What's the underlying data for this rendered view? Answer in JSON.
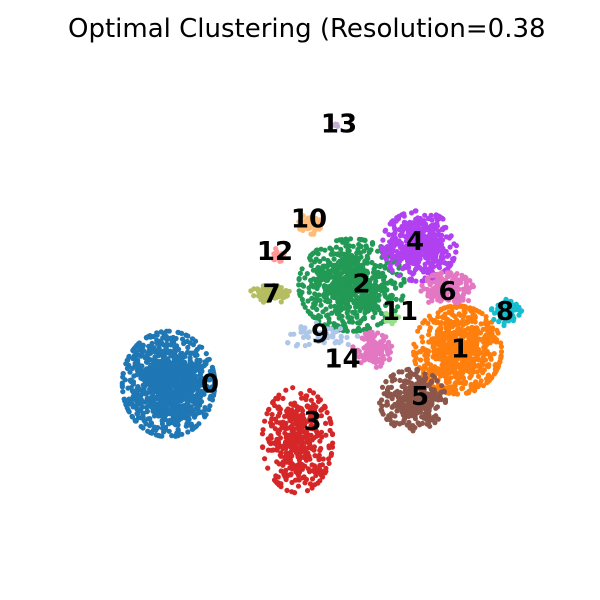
{
  "chart_data": {
    "type": "scatter",
    "title": "Optimal Clustering (Resolution=0.38",
    "xlabel": "",
    "ylabel": "",
    "grid": false,
    "axes_visible": false,
    "xlim": [
      0,
      100
    ],
    "ylim": [
      0,
      100
    ],
    "clusters": [
      {
        "label": "0",
        "color": "#1f77b4",
        "x": 21.7,
        "y": 35.2,
        "sx": 4.2,
        "sy": 4.8,
        "n": 1100
      },
      {
        "label": "1",
        "color": "#ff7f0e",
        "x": 79.5,
        "y": 42.0,
        "sx": 4.0,
        "sy": 4.0,
        "n": 780
      },
      {
        "label": "2",
        "color": "#229955",
        "x": 58.3,
        "y": 55.0,
        "sx": 4.8,
        "sy": 4.2,
        "n": 760
      },
      {
        "label": "3",
        "color": "#d62728",
        "x": 47.5,
        "y": 24.0,
        "sx": 3.2,
        "sy": 4.8,
        "n": 420
      },
      {
        "label": "4",
        "color": "#b040f0",
        "x": 71.8,
        "y": 62.8,
        "sx": 3.4,
        "sy": 3.2,
        "n": 470
      },
      {
        "label": "5",
        "color": "#8c564b",
        "x": 70.5,
        "y": 32.0,
        "sx": 3.0,
        "sy": 2.8,
        "n": 340
      },
      {
        "label": "6",
        "color": "#e377c2",
        "x": 77.5,
        "y": 54.0,
        "sx": 2.4,
        "sy": 1.6,
        "n": 190
      },
      {
        "label": "7",
        "color": "#b5bd61",
        "x": 42.3,
        "y": 53.2,
        "sx": 2.0,
        "sy": 0.8,
        "n": 95
      },
      {
        "label": "8",
        "color": "#17becf",
        "x": 89.3,
        "y": 49.5,
        "sx": 1.4,
        "sy": 1.2,
        "n": 90
      },
      {
        "label": "9",
        "color": "#aec7e8",
        "x": 52.0,
        "y": 44.8,
        "sx": 3.4,
        "sy": 1.2,
        "n": 55
      },
      {
        "label": "10",
        "color": "#ffbb78",
        "x": 50.0,
        "y": 67.0,
        "sx": 1.1,
        "sy": 1.0,
        "n": 60
      },
      {
        "label": "11",
        "color": "#98df8a",
        "x": 66.3,
        "y": 48.5,
        "sx": 0.8,
        "sy": 0.8,
        "n": 15
      },
      {
        "label": "12",
        "color": "#ff9896",
        "x": 43.5,
        "y": 61.0,
        "sx": 0.7,
        "sy": 0.6,
        "n": 22
      },
      {
        "label": "13",
        "color": "#c5b0d5",
        "x": 55.0,
        "y": 87.0,
        "sx": 0.4,
        "sy": 0.25,
        "n": 8
      },
      {
        "label": "14",
        "color": "#e377c2",
        "x": 62.5,
        "y": 42.0,
        "sx": 1.8,
        "sy": 1.6,
        "n": 130
      }
    ],
    "cluster_labels": [
      {
        "text": "0",
        "x": 30.0,
        "y": 35.0
      },
      {
        "text": "1",
        "x": 80.0,
        "y": 42.0
      },
      {
        "text": "2",
        "x": 60.3,
        "y": 55.0
      },
      {
        "text": "3",
        "x": 50.5,
        "y": 27.5
      },
      {
        "text": "4",
        "x": 71.0,
        "y": 63.5
      },
      {
        "text": "5",
        "x": 72.0,
        "y": 32.5
      },
      {
        "text": "6",
        "x": 77.5,
        "y": 53.5
      },
      {
        "text": "7",
        "x": 42.3,
        "y": 53.0
      },
      {
        "text": "8",
        "x": 89.0,
        "y": 49.5
      },
      {
        "text": "9",
        "x": 52.0,
        "y": 45.0
      },
      {
        "text": "10",
        "x": 49.8,
        "y": 68.0
      },
      {
        "text": "11",
        "x": 68.0,
        "y": 49.5
      },
      {
        "text": "12",
        "x": 43.0,
        "y": 61.5
      },
      {
        "text": "13",
        "x": 55.8,
        "y": 87.0
      },
      {
        "text": "14",
        "x": 56.5,
        "y": 40.0
      }
    ]
  }
}
